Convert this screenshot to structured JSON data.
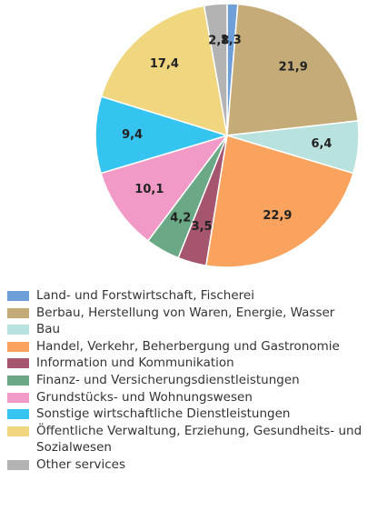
{
  "chart_data": {
    "type": "pie",
    "categories": [
      "Land- und Forstwirtschaft, Fischerei",
      "Berbau, Herstellung von Waren, Energie, Wasser",
      "Bau",
      "Handel, Verkehr, Beherbergung und Gastronomie",
      "Information und Kommunikation",
      "Finanz- und Versicherungsdienstleistungen",
      "Grundstücks- und Wohnungswesen",
      "Sonstige wirtschaftliche Dienstleistungen",
      "Öffentliche Verwaltung, Erziehung, Gesundheits- und Sozialwesen",
      "Other services"
    ],
    "values": [
      1.3,
      21.9,
      6.4,
      22.9,
      3.5,
      4.2,
      10.1,
      9.4,
      17.4,
      2.8
    ],
    "value_labels": [
      "1,3",
      "21,9",
      "6,4",
      "22,9",
      "3,5",
      "4,2",
      "10,1",
      "9,4",
      "17,4",
      "2,8"
    ],
    "colors": [
      "#6f9fd8",
      "#c5ab78",
      "#b9e2de",
      "#f9a35f",
      "#a5566e",
      "#6aa886",
      "#f29ac7",
      "#35c4f0",
      "#f1d680",
      "#b3b3b3"
    ],
    "legend": "bottom"
  }
}
